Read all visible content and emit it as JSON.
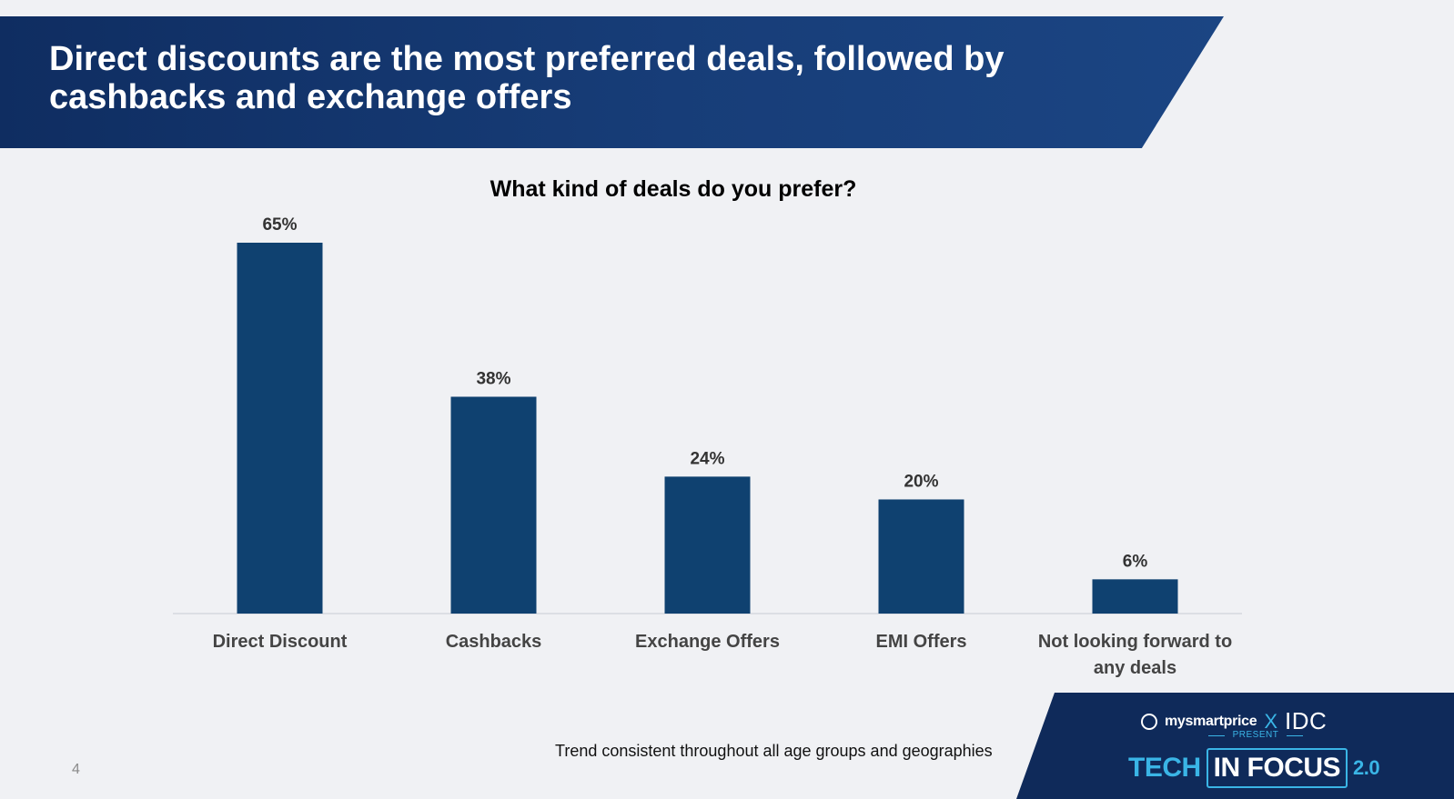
{
  "slide": {
    "title": "Direct discounts are the most preferred deals, followed by cashbacks and exchange offers",
    "footnote": "Trend consistent throughout all age groups and geographies",
    "page_number": "4"
  },
  "branding": {
    "partner_a": "mysmartprice",
    "separator": "X",
    "partner_b": "IDC",
    "present": "PRESENT",
    "event_part1": "TECH",
    "event_part2": "IN FOCUS",
    "event_version": "2.0"
  },
  "colors": {
    "bar": "#0f4170",
    "banner": "#0f2d61",
    "accent": "#3ab5e6"
  },
  "chart_data": {
    "type": "bar",
    "title": "What kind of deals do you prefer?",
    "categories": [
      "Direct Discount",
      "Cashbacks",
      "Exchange Offers",
      "EMI Offers",
      "Not looking forward to any deals"
    ],
    "values": [
      65,
      38,
      24,
      20,
      6
    ],
    "value_labels": [
      "65%",
      "38%",
      "24%",
      "20%",
      "6%"
    ],
    "xlabel": "",
    "ylabel": "",
    "ylim": [
      0,
      65
    ],
    "grid": false,
    "legend": "none"
  }
}
